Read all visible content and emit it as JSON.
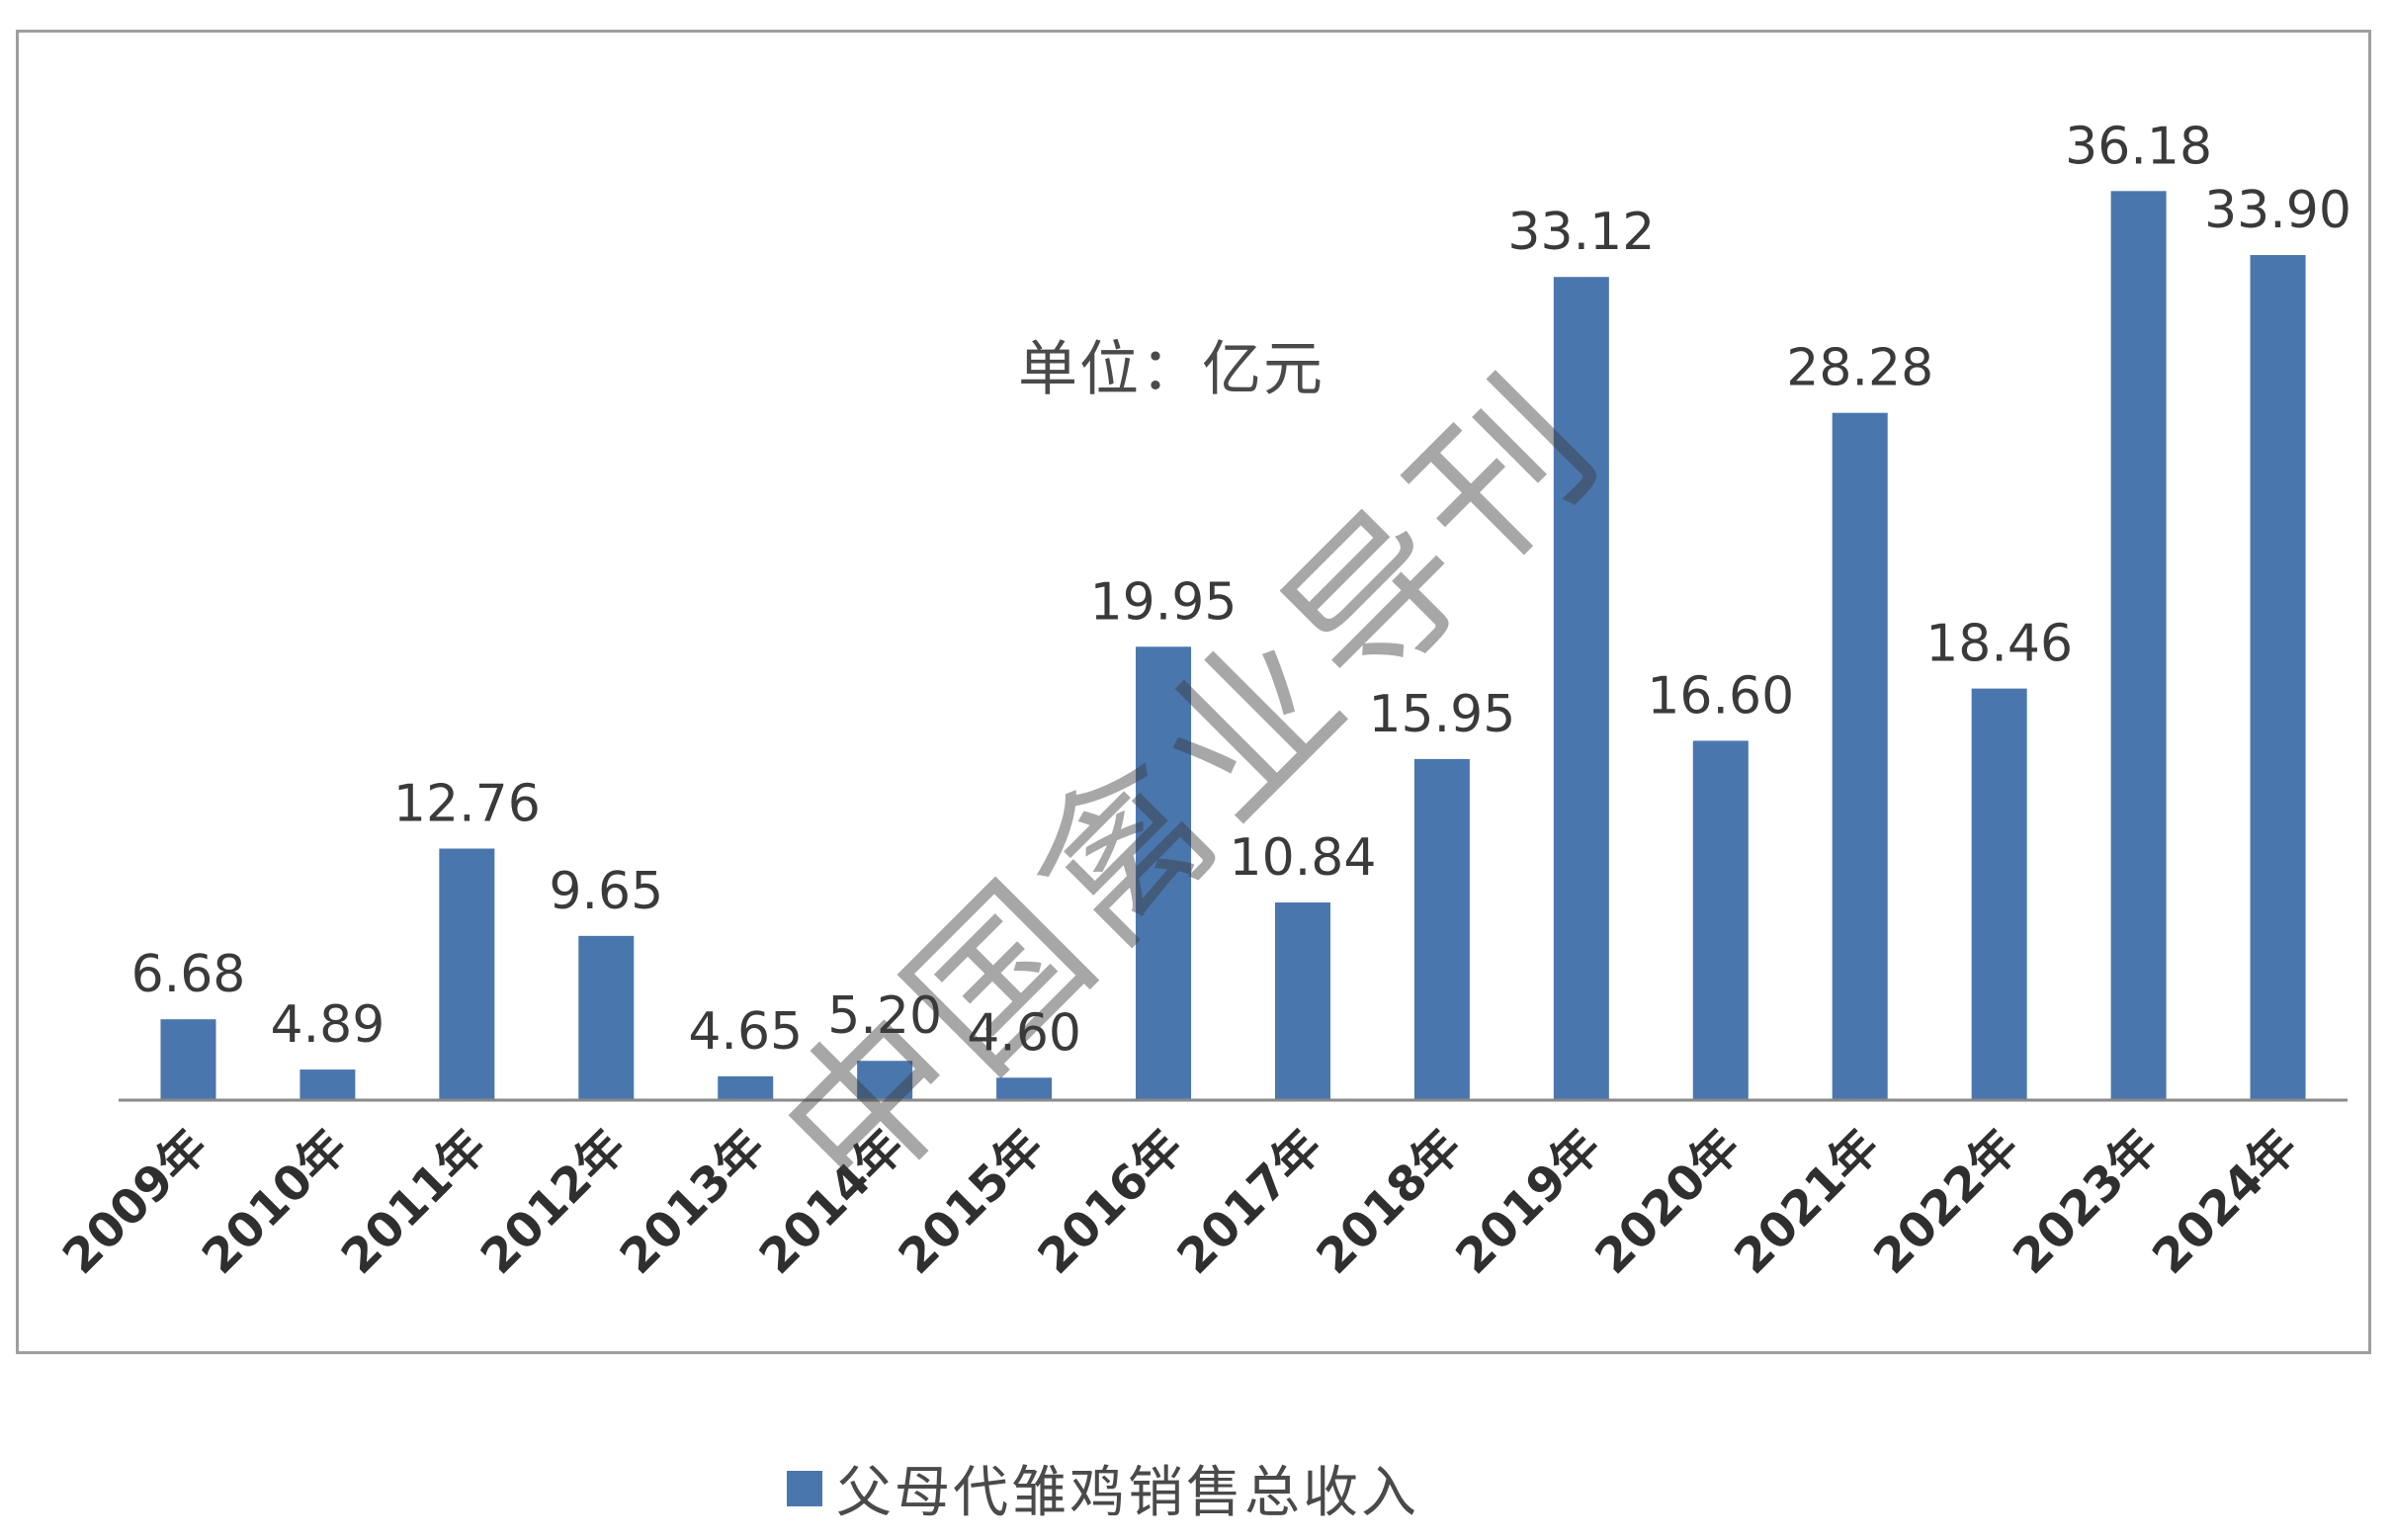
{
  "chart_data": {
    "type": "bar",
    "categories": [
      "2009年",
      "2010年",
      "2011年",
      "2012年",
      "2013年",
      "2014年",
      "2015年",
      "2016年",
      "2017年",
      "2018年",
      "2019年",
      "2020年",
      "2021年",
      "2022年",
      "2023年",
      "2024年"
    ],
    "series": [
      {
        "name": "父母代雏鸡销售总收入",
        "values": [
          6.68,
          4.89,
          12.76,
          9.65,
          4.65,
          5.2,
          4.6,
          19.95,
          10.84,
          15.95,
          33.12,
          16.6,
          28.28,
          18.46,
          36.18,
          33.9
        ]
      }
    ],
    "value_labels": [
      "6.68",
      "4.89",
      "12.76",
      "9.65",
      "4.65",
      "5.20",
      "4.60",
      "19.95",
      "10.84",
      "15.95",
      "33.12",
      "16.60",
      "28.28",
      "18.46",
      "36.18",
      "33.90"
    ],
    "unit_label": "单位：亿元",
    "ylim": [
      3.8,
      37
    ],
    "legend_position": "bottom",
    "grid": false,
    "bar_color": "#4a76ae",
    "watermark": "中国禽业导刊"
  }
}
